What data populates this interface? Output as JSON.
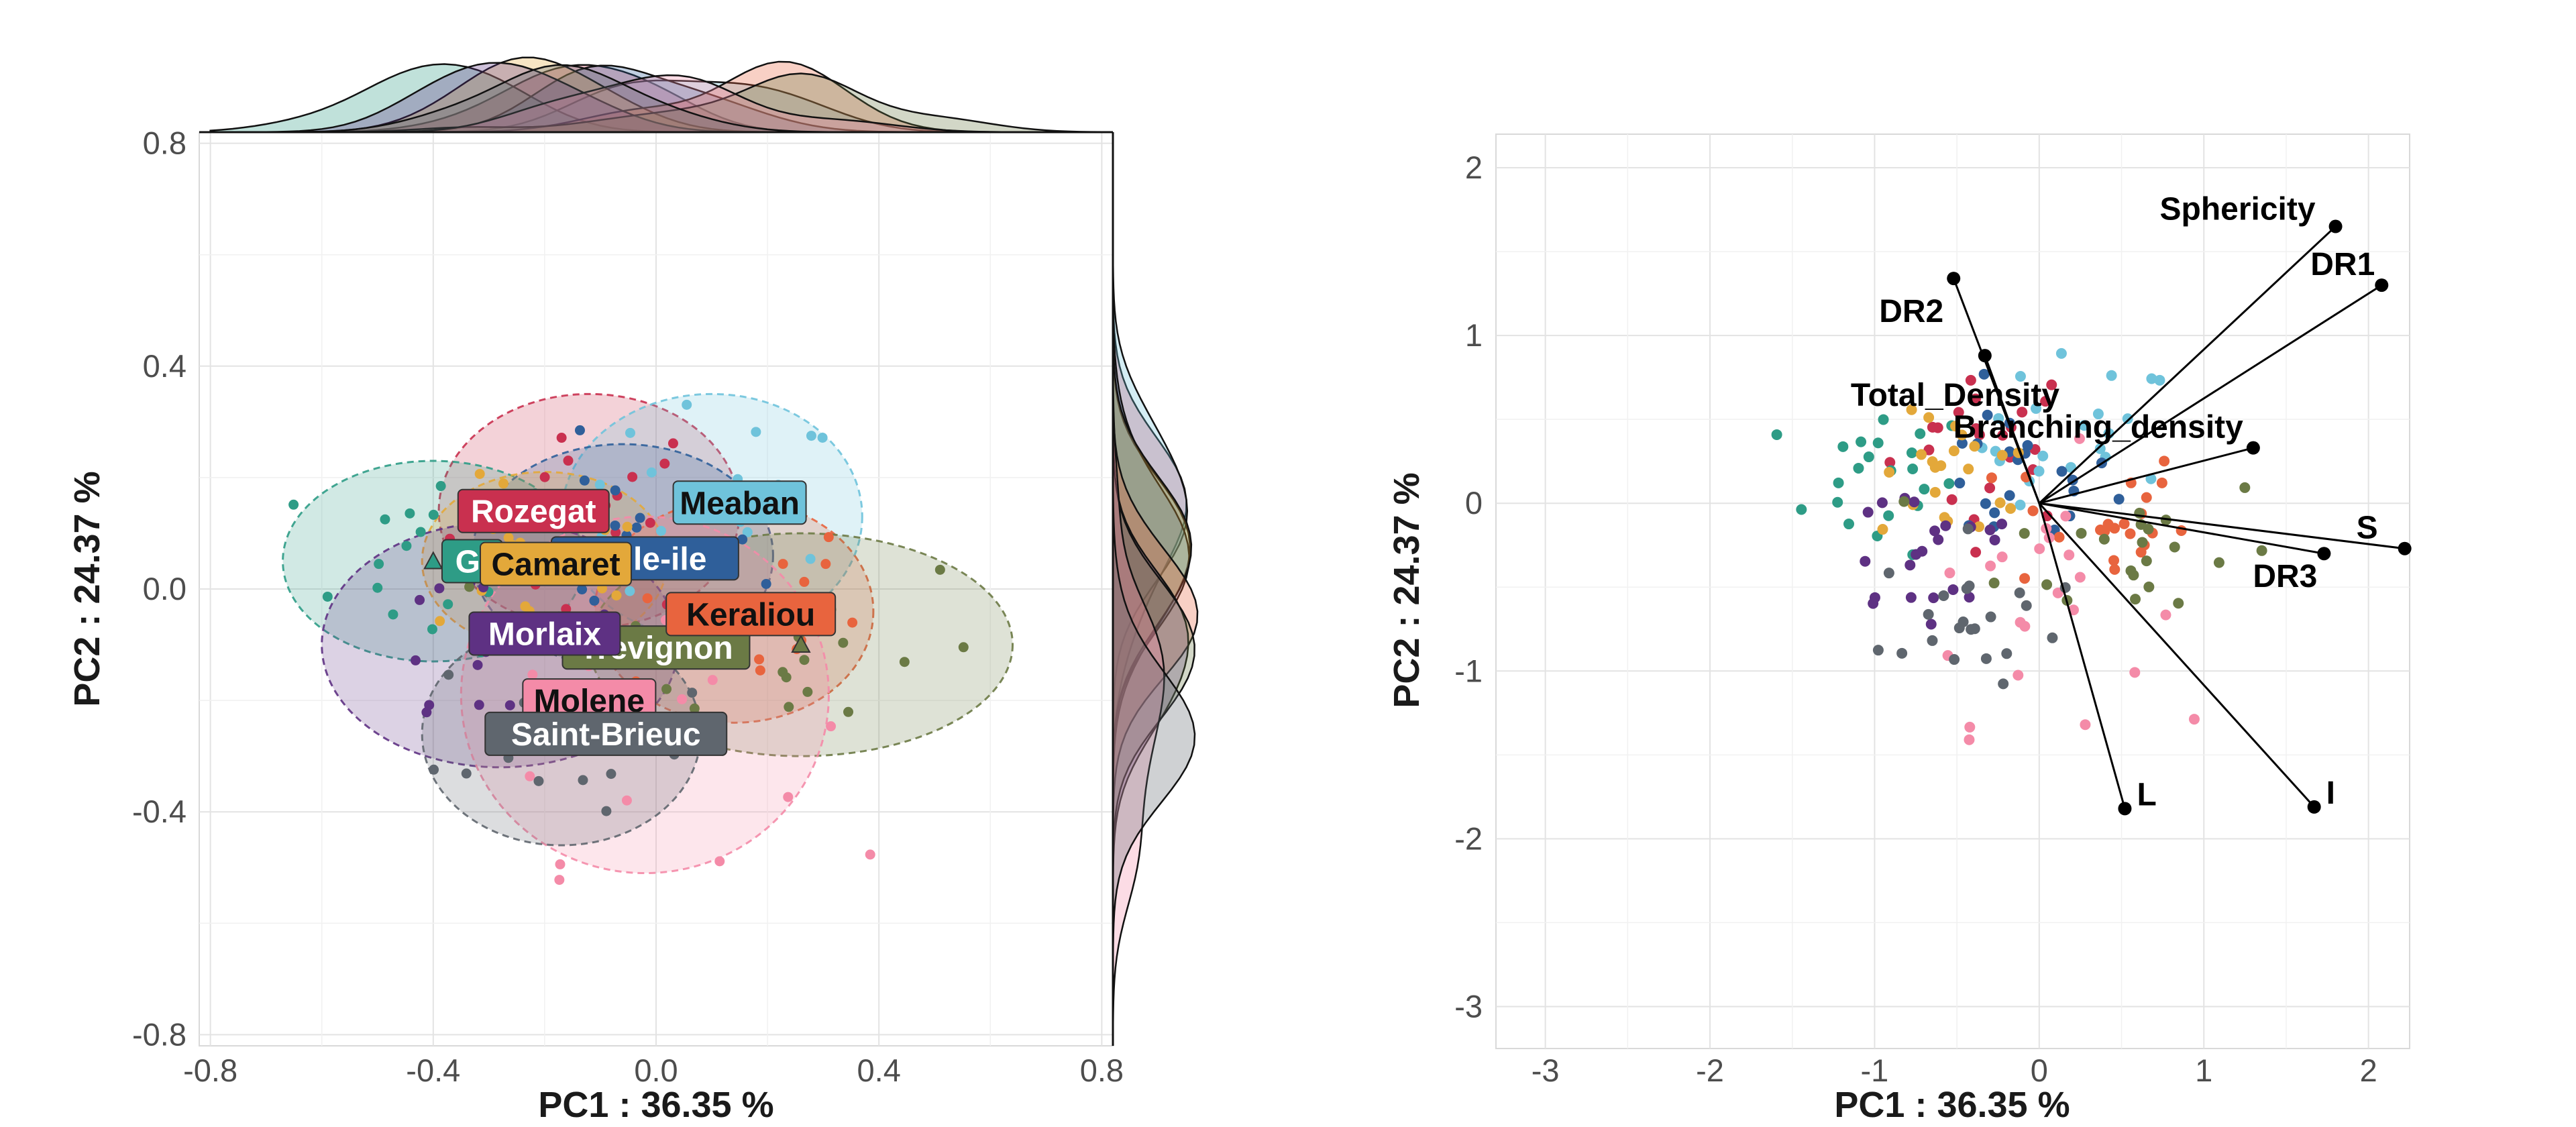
{
  "colors": {
    "Rozegat": "#c9304f",
    "Meaban": "#6fc3db",
    "Glenan": "#2e9c86",
    "Belle-ile": "#2f5f9a",
    "Camaret": "#e3a83a",
    "Keraliou": "#e8643e",
    "Morlaix": "#5e3183",
    "Trevignon": "#6b7a45",
    "Molene": "#f48ba8",
    "Saint-Brieuc": "#5f666e"
  },
  "chart_data": [
    {
      "type": "scatter",
      "xlabel": "PC1 :  36.35 %",
      "ylabel": "PC2 :  24.37 %",
      "xlim": [
        -0.82,
        0.82
      ],
      "ylim": [
        -0.82,
        0.82
      ],
      "xticks": [
        "-0.8",
        "-0.4",
        "0.0",
        "0.4",
        "0.8"
      ],
      "yticks": [
        "0.8",
        "0.4",
        "0.0",
        "-0.4",
        "-0.8"
      ],
      "xtick_values": [
        -0.8,
        -0.4,
        0.0,
        0.4,
        0.8
      ],
      "ytick_values": [
        0.8,
        0.4,
        0.0,
        -0.4,
        -0.8
      ],
      "grid": true,
      "marginal_density": true,
      "groups": [
        {
          "name": "Rozegat",
          "label": "Rozegat",
          "center": [
            -0.12,
            0.14
          ],
          "ellipse_r": [
            0.27,
            0.21
          ]
        },
        {
          "name": "Meaban",
          "label": "Meaban",
          "center": [
            0.1,
            0.13
          ],
          "ellipse_r": [
            0.27,
            0.22
          ]
        },
        {
          "name": "Glenan",
          "label": "Gl",
          "center": [
            -0.4,
            0.05
          ],
          "ellipse_r": [
            0.27,
            0.18
          ]
        },
        {
          "name": "Belle-ile",
          "label": "Belle-ile",
          "center": [
            -0.06,
            0.06
          ],
          "ellipse_r": [
            0.27,
            0.2
          ]
        },
        {
          "name": "Camaret",
          "label": "Camaret",
          "center": [
            -0.2,
            0.05
          ],
          "ellipse_r": [
            0.22,
            0.16
          ]
        },
        {
          "name": "Keraliou",
          "label": "Keraliou",
          "center": [
            0.14,
            -0.04
          ],
          "ellipse_r": [
            0.25,
            0.2
          ]
        },
        {
          "name": "Morlaix",
          "label": "Morlaix",
          "center": [
            -0.28,
            -0.1
          ],
          "ellipse_r": [
            0.32,
            0.22
          ]
        },
        {
          "name": "Trevignon",
          "label": "Trevignon",
          "center": [
            0.26,
            -0.1
          ],
          "ellipse_r": [
            0.38,
            0.2
          ]
        },
        {
          "name": "Molene",
          "label": "Molene",
          "center": [
            -0.02,
            -0.19
          ],
          "ellipse_r": [
            0.33,
            0.32
          ]
        },
        {
          "name": "Saint-Brieuc",
          "label": "Saint-Brieuc",
          "center": [
            -0.17,
            -0.26
          ],
          "ellipse_r": [
            0.25,
            0.2
          ]
        }
      ]
    },
    {
      "type": "biplot",
      "xlabel": "PC1 :  36.35 %",
      "ylabel": "PC2 :  24.37 %",
      "xlim": [
        -3.3,
        2.25
      ],
      "ylim": [
        -3.25,
        2.2
      ],
      "xticks": [
        "-3",
        "-2",
        "-1",
        "0",
        "1",
        "2"
      ],
      "yticks": [
        "2",
        "1",
        "0",
        "-1",
        "-2",
        "-3"
      ],
      "xtick_values": [
        -3,
        -2,
        -1,
        0,
        1,
        2
      ],
      "ytick_values": [
        2,
        1,
        0,
        -1,
        -2,
        -3
      ],
      "grid": true,
      "loadings": [
        {
          "name": "Sphericity",
          "x": 1.8,
          "y": 1.65
        },
        {
          "name": "DR1",
          "x": 2.08,
          "y": 1.3
        },
        {
          "name": "DR2",
          "x": -0.52,
          "y": 1.34
        },
        {
          "name": "Total_Density",
          "x": -0.33,
          "y": 0.88
        },
        {
          "name": "Branching_density",
          "x": 1.3,
          "y": 0.33
        },
        {
          "name": "S",
          "x": 2.22,
          "y": -0.27
        },
        {
          "name": "DR3",
          "x": 1.73,
          "y": -0.3
        },
        {
          "name": "L",
          "x": 0.52,
          "y": -1.82
        },
        {
          "name": "I",
          "x": 1.67,
          "y": -1.81
        }
      ]
    }
  ]
}
